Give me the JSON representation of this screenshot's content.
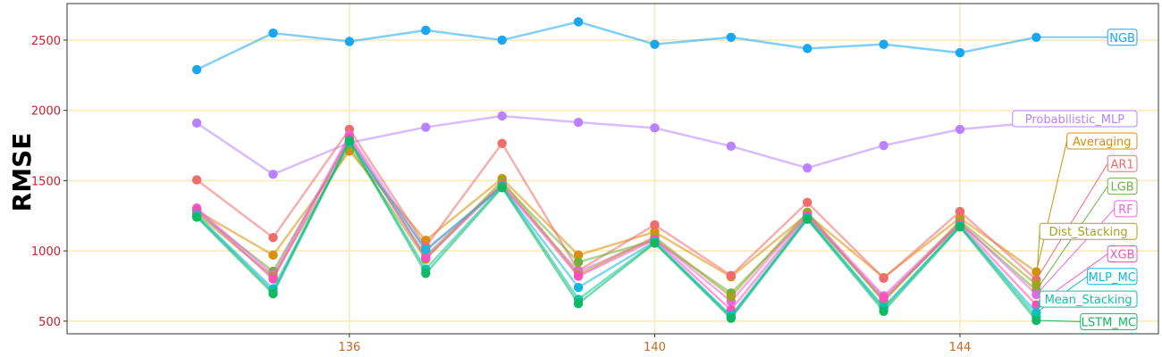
{
  "chart_data": {
    "type": "line",
    "ylabel": "RMSE",
    "xlabel": "",
    "x": [
      134,
      135,
      136,
      137,
      138,
      139,
      140,
      141,
      142,
      143,
      144,
      145
    ],
    "xlim": [
      132.3,
      146.6
    ],
    "ylim": [
      410,
      2760
    ],
    "xticks": [
      136,
      140,
      144
    ],
    "yticks": [
      500,
      1000,
      1500,
      2000,
      2500
    ],
    "grid": true,
    "legend": "direct labels at right end of each series",
    "colors": {
      "grid": "#fde8bc",
      "axis_text": "#c8202a",
      "x_tick_text": "#c8651e",
      "axis_title": "#c8202a"
    },
    "series": [
      {
        "name": "NGB",
        "color": "#1aa6f0",
        "values": [
          2290,
          2550,
          2490,
          2570,
          2500,
          2630,
          2470,
          2520,
          2440,
          2470,
          2410,
          2520
        ]
      },
      {
        "name": "Probabilistic_MLP",
        "color": "#b983ff",
        "values": [
          1910,
          1545,
          1770,
          1880,
          1960,
          1915,
          1875,
          1745,
          1590,
          1750,
          1865,
          1915
        ]
      },
      {
        "name": "Averaging",
        "color": "#d8900a",
        "values": [
          1285,
          970,
          1710,
          1075,
          1515,
          970,
          1135,
          815,
          1260,
          810,
          1235,
          850
        ]
      },
      {
        "name": "AR1",
        "color": "#f06b6b",
        "values": [
          1505,
          1095,
          1865,
          1030,
          1765,
          860,
          1185,
          825,
          1345,
          805,
          1280,
          795
        ]
      },
      {
        "name": "LGB",
        "color": "#6eb33f",
        "values": [
          1275,
          855,
          1790,
          965,
          1480,
          920,
          1075,
          700,
          1245,
          650,
          1195,
          720
        ]
      },
      {
        "name": "RF",
        "color": "#e868e0",
        "values": [
          1305,
          830,
          1825,
          1000,
          1465,
          850,
          1090,
          640,
          1265,
          680,
          1205,
          690
        ]
      },
      {
        "name": "Dist_Stacking",
        "color": "#a3a31e",
        "values": [
          1265,
          815,
          1740,
          940,
          1500,
          830,
          1100,
          675,
          1275,
          640,
          1215,
          760
        ]
      },
      {
        "name": "XGB",
        "color": "#ff4fb8",
        "values": [
          1295,
          800,
          1810,
          950,
          1470,
          820,
          1080,
          580,
          1250,
          665,
          1190,
          615
        ]
      },
      {
        "name": "MLP_MC",
        "color": "#14b8d9",
        "values": [
          1255,
          730,
          1775,
          1010,
          1455,
          740,
          1065,
          540,
          1235,
          600,
          1175,
          560
        ]
      },
      {
        "name": "Mean_Stacking",
        "color": "#0ec4a3",
        "values": [
          1248,
          710,
          1780,
          870,
          1460,
          655,
          1060,
          530,
          1230,
          590,
          1180,
          530
        ]
      },
      {
        "name": "LSTM_MC",
        "color": "#11b866",
        "values": [
          1240,
          695,
          1785,
          840,
          1450,
          625,
          1055,
          520,
          1225,
          570,
          1170,
          505
        ]
      }
    ]
  }
}
